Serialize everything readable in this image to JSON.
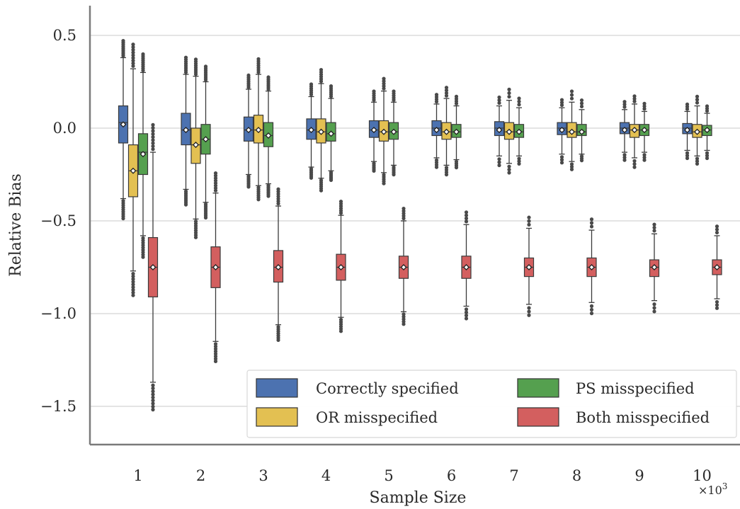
{
  "chart_data": {
    "type": "box",
    "title": "",
    "xlabel": "Sample Size",
    "ylabel": "Relative Bias",
    "x_multiplier": "×10",
    "x_multiplier_exp": "3",
    "categories": [
      "1",
      "2",
      "3",
      "4",
      "5",
      "6",
      "7",
      "8",
      "9",
      "10"
    ],
    "ylim": [
      -1.72,
      0.66
    ],
    "yticks": [
      0.5,
      0.0,
      -0.5,
      -1.0,
      -1.5
    ],
    "ytick_labels": [
      "0.5",
      "0.0",
      "−0.5",
      "−1.0",
      "−1.5"
    ],
    "grid": "horizontal",
    "legend_position": "lower-right",
    "colors": {
      "Correctly specified": "#4c72b0",
      "OR misspecified": "#e3c052",
      "PS misspecified": "#55a04f",
      "Both misspecified": "#d35f5f"
    },
    "series": [
      {
        "name": "Correctly specified",
        "boxes": [
          {
            "q1": -0.08,
            "median": 0.03,
            "q3": 0.12,
            "whislo": -0.38,
            "whishi": 0.38,
            "mean": 0.02
          },
          {
            "q1": -0.09,
            "median": -0.01,
            "q3": 0.08,
            "whislo": -0.33,
            "whishi": 0.29,
            "mean": -0.01
          },
          {
            "q1": -0.07,
            "median": -0.01,
            "q3": 0.06,
            "whislo": -0.25,
            "whishi": 0.21,
            "mean": -0.01
          },
          {
            "q1": -0.06,
            "median": -0.01,
            "q3": 0.05,
            "whislo": -0.21,
            "whishi": 0.17,
            "mean": -0.01
          },
          {
            "q1": -0.05,
            "median": -0.01,
            "q3": 0.04,
            "whislo": -0.18,
            "whishi": 0.14,
            "mean": -0.01
          },
          {
            "q1": -0.04,
            "median": 0.0,
            "q3": 0.04,
            "whislo": -0.16,
            "whishi": 0.13,
            "mean": -0.01
          },
          {
            "q1": -0.04,
            "median": 0.0,
            "q3": 0.035,
            "whislo": -0.15,
            "whishi": 0.12,
            "mean": -0.01
          },
          {
            "q1": -0.035,
            "median": 0.0,
            "q3": 0.03,
            "whislo": -0.14,
            "whishi": 0.11,
            "mean": -0.01
          },
          {
            "q1": -0.03,
            "median": 0.0,
            "q3": 0.03,
            "whislo": -0.13,
            "whishi": 0.1,
            "mean": -0.01
          },
          {
            "q1": -0.03,
            "median": 0.0,
            "q3": 0.025,
            "whislo": -0.12,
            "whishi": 0.09,
            "mean": -0.01
          }
        ]
      },
      {
        "name": "OR misspecified",
        "boxes": [
          {
            "q1": -0.37,
            "median": -0.23,
            "q3": -0.09,
            "whislo": -0.77,
            "whishi": 0.32,
            "mean": -0.23
          },
          {
            "q1": -0.19,
            "median": -0.09,
            "q3": 0.0,
            "whislo": -0.49,
            "whishi": 0.28,
            "mean": -0.09
          },
          {
            "q1": -0.08,
            "median": -0.01,
            "q3": 0.07,
            "whislo": -0.31,
            "whishi": 0.29,
            "mean": -0.01
          },
          {
            "q1": -0.08,
            "median": -0.02,
            "q3": 0.05,
            "whislo": -0.27,
            "whishi": 0.24,
            "mean": -0.02
          },
          {
            "q1": -0.07,
            "median": -0.02,
            "q3": 0.04,
            "whislo": -0.24,
            "whishi": 0.2,
            "mean": -0.02
          },
          {
            "q1": -0.06,
            "median": -0.02,
            "q3": 0.03,
            "whislo": -0.2,
            "whishi": 0.16,
            "mean": -0.02
          },
          {
            "q1": -0.06,
            "median": -0.02,
            "q3": 0.03,
            "whislo": -0.19,
            "whishi": 0.15,
            "mean": -0.02
          },
          {
            "q1": -0.05,
            "median": -0.02,
            "q3": 0.03,
            "whislo": -0.18,
            "whishi": 0.14,
            "mean": -0.02
          },
          {
            "q1": -0.05,
            "median": -0.01,
            "q3": 0.02,
            "whislo": -0.16,
            "whishi": 0.13,
            "mean": -0.01
          },
          {
            "q1": -0.05,
            "median": -0.02,
            "q3": 0.02,
            "whislo": -0.15,
            "whishi": 0.12,
            "mean": -0.02
          }
        ]
      },
      {
        "name": "PS misspecified",
        "boxes": [
          {
            "q1": -0.25,
            "median": -0.13,
            "q3": -0.03,
            "whislo": -0.58,
            "whishi": 0.3,
            "mean": -0.14
          },
          {
            "q1": -0.14,
            "median": -0.06,
            "q3": 0.02,
            "whislo": -0.4,
            "whishi": 0.25,
            "mean": -0.06
          },
          {
            "q1": -0.1,
            "median": -0.04,
            "q3": 0.03,
            "whislo": -0.3,
            "whishi": 0.2,
            "mean": -0.04
          },
          {
            "q1": -0.07,
            "median": -0.03,
            "q3": 0.03,
            "whislo": -0.23,
            "whishi": 0.16,
            "mean": -0.03
          },
          {
            "q1": -0.06,
            "median": -0.02,
            "q3": 0.03,
            "whislo": -0.2,
            "whishi": 0.14,
            "mean": -0.02
          },
          {
            "q1": -0.05,
            "median": -0.02,
            "q3": 0.02,
            "whislo": -0.17,
            "whishi": 0.12,
            "mean": -0.02
          },
          {
            "q1": -0.05,
            "median": -0.02,
            "q3": 0.02,
            "whislo": -0.15,
            "whishi": 0.11,
            "mean": -0.02
          },
          {
            "q1": -0.04,
            "median": -0.02,
            "q3": 0.02,
            "whislo": -0.14,
            "whishi": 0.1,
            "mean": -0.02
          },
          {
            "q1": -0.04,
            "median": -0.01,
            "q3": 0.02,
            "whislo": -0.13,
            "whishi": 0.09,
            "mean": -0.01
          },
          {
            "q1": -0.04,
            "median": -0.01,
            "q3": 0.015,
            "whislo": -0.12,
            "whishi": 0.08,
            "mean": -0.01
          }
        ]
      },
      {
        "name": "Both misspecified",
        "boxes": [
          {
            "q1": -0.91,
            "median": -0.75,
            "q3": -0.59,
            "whislo": -1.37,
            "whishi": -0.13,
            "mean": -0.75
          },
          {
            "q1": -0.86,
            "median": -0.75,
            "q3": -0.64,
            "whislo": -1.15,
            "whishi": -0.35,
            "mean": -0.75
          },
          {
            "q1": -0.83,
            "median": -0.75,
            "q3": -0.66,
            "whislo": -1.06,
            "whishi": -0.42,
            "mean": -0.75
          },
          {
            "q1": -0.82,
            "median": -0.75,
            "q3": -0.68,
            "whislo": -1.02,
            "whishi": -0.47,
            "mean": -0.75
          },
          {
            "q1": -0.81,
            "median": -0.75,
            "q3": -0.69,
            "whislo": -0.99,
            "whishi": -0.5,
            "mean": -0.75
          },
          {
            "q1": -0.81,
            "median": -0.75,
            "q3": -0.69,
            "whislo": -0.96,
            "whishi": -0.52,
            "mean": -0.75
          },
          {
            "q1": -0.8,
            "median": -0.75,
            "q3": -0.7,
            "whislo": -0.95,
            "whishi": -0.54,
            "mean": -0.75
          },
          {
            "q1": -0.8,
            "median": -0.75,
            "q3": -0.7,
            "whislo": -0.94,
            "whishi": -0.55,
            "mean": -0.75
          },
          {
            "q1": -0.8,
            "median": -0.75,
            "q3": -0.71,
            "whislo": -0.93,
            "whishi": -0.57,
            "mean": -0.75
          },
          {
            "q1": -0.79,
            "median": -0.75,
            "q3": -0.71,
            "whislo": -0.92,
            "whishi": -0.58,
            "mean": -0.75
          }
        ]
      }
    ]
  }
}
